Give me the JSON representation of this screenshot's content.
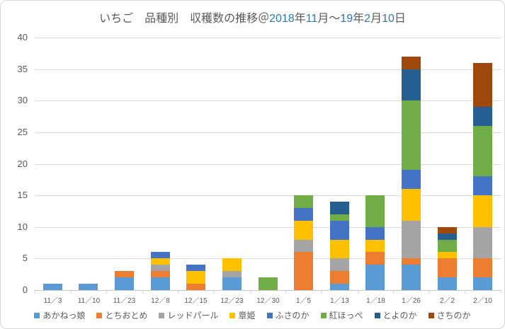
{
  "chart": {
    "title_full": "いちご　品種別　収穫数の推移＠2018年11月～19年2月10日",
    "title_parts": [
      {
        "text": "いちご　品種別　収穫数の推移＠",
        "color": "#595959"
      },
      {
        "text": "2018",
        "color": "#2E75B6"
      },
      {
        "text": "年",
        "color": "#595959"
      },
      {
        "text": "11",
        "color": "#2E75B6"
      },
      {
        "text": "月～",
        "color": "#595959"
      },
      {
        "text": "19",
        "color": "#2E75B6"
      },
      {
        "text": "年",
        "color": "#595959"
      },
      {
        "text": "2",
        "color": "#2E75B6"
      },
      {
        "text": "月",
        "color": "#595959"
      },
      {
        "text": "10",
        "color": "#2E75B6"
      },
      {
        "text": "日",
        "color": "#595959"
      }
    ],
    "axis_text_color": "#595959",
    "gridline_color": "#D9D9D9"
  },
  "chart_data": {
    "type": "bar",
    "stacked": true,
    "title": "いちご　品種別　収穫数の推移＠2018年11月～19年2月10日",
    "xlabel": "",
    "ylabel": "",
    "ylim": [
      0,
      40
    ],
    "yticks": [
      0,
      5,
      10,
      15,
      20,
      25,
      30,
      35,
      40
    ],
    "grid": true,
    "legend_position": "bottom",
    "categories": [
      "11／3",
      "11／10",
      "11／23",
      "12／8",
      "12／15",
      "12／23",
      "12／30",
      "1／5",
      "1／13",
      "1／18",
      "1／26",
      "2／2",
      "2／10"
    ],
    "series": [
      {
        "name": "あかねっ娘",
        "color": "#5B9BD5",
        "values": [
          1,
          1,
          2,
          2,
          0,
          2,
          0,
          0,
          1,
          4,
          4,
          2,
          2
        ]
      },
      {
        "name": "とちおとめ",
        "color": "#ED7D31",
        "values": [
          0,
          0,
          1,
          1,
          1,
          0,
          0,
          6,
          2,
          2,
          1,
          3,
          3
        ]
      },
      {
        "name": "レッドパール",
        "color": "#A5A5A5",
        "values": [
          0,
          0,
          0,
          1,
          0,
          1,
          0,
          2,
          2,
          0,
          6,
          0,
          5
        ]
      },
      {
        "name": "章姫",
        "color": "#FFC000",
        "values": [
          0,
          0,
          0,
          1,
          2,
          2,
          0,
          3,
          3,
          2,
          5,
          1,
          5
        ]
      },
      {
        "name": "ふさのか",
        "color": "#4472C4",
        "values": [
          0,
          0,
          0,
          1,
          1,
          0,
          0,
          2,
          3,
          2,
          3,
          0,
          3
        ]
      },
      {
        "name": "紅ほっぺ",
        "color": "#70AD47",
        "values": [
          0,
          0,
          0,
          0,
          0,
          0,
          2,
          2,
          1,
          5,
          11,
          2,
          8
        ]
      },
      {
        "name": "とよのか",
        "color": "#255E91",
        "values": [
          0,
          0,
          0,
          0,
          0,
          0,
          0,
          0,
          2,
          0,
          5,
          1,
          3
        ]
      },
      {
        "name": "さちのか",
        "color": "#9E480E",
        "values": [
          0,
          0,
          0,
          0,
          0,
          0,
          0,
          0,
          0,
          0,
          2,
          1,
          7
        ]
      }
    ],
    "totals": [
      1,
      1,
      3,
      6,
      4,
      5,
      2,
      15,
      14,
      15,
      37,
      10,
      36
    ]
  }
}
